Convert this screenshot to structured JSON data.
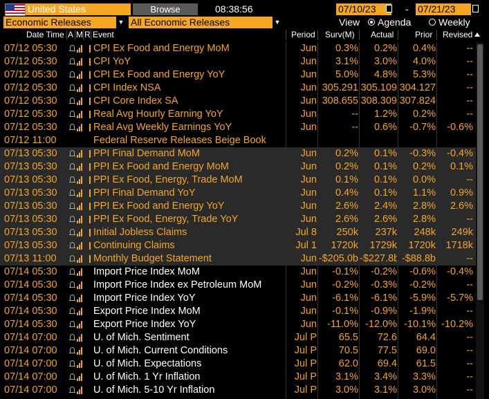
{
  "toolbar": {
    "country": "United States",
    "browse_label": "Browse",
    "clock": "08:38:56",
    "date_start": "07/10/23",
    "date_end": "07/21/23",
    "date_dash": "-"
  },
  "filters": {
    "category": "Economic Releases",
    "scope": "All Economic Releases",
    "view_label": "View",
    "option_agenda": "Agenda",
    "option_weekly": "Weekly",
    "selected_view": "Agenda"
  },
  "columns": {
    "datetime": "Date Time",
    "a": "A",
    "m": "M",
    "r": "R",
    "event": "Event",
    "period": "Period",
    "survey": "Surv(M)",
    "actual": "Actual",
    "prior": "Prior",
    "revised": "Revised"
  },
  "colors": {
    "accent_orange": "#f5a623",
    "background": "#000000",
    "shade_row": "#2a2a2a",
    "gray_button": "#5a5a5a"
  },
  "rows": [
    {
      "dt": "07/12 05:30",
      "event": "CPI Ex Food and Energy MoM",
      "period": "Jun",
      "surv": "0.3%",
      "actual": "0.2%",
      "prior": "0.4%",
      "revised": "--",
      "shade": false,
      "white": false
    },
    {
      "dt": "07/12 05:30",
      "event": "CPI YoY",
      "period": "Jun",
      "surv": "3.1%",
      "actual": "3.0%",
      "prior": "4.0%",
      "revised": "--",
      "shade": false,
      "white": false
    },
    {
      "dt": "07/12 05:30",
      "event": "CPI Ex Food and Energy YoY",
      "period": "Jun",
      "surv": "5.0%",
      "actual": "4.8%",
      "prior": "5.3%",
      "revised": "--",
      "shade": false,
      "white": false
    },
    {
      "dt": "07/12 05:30",
      "event": "CPI Index NSA",
      "period": "Jun",
      "surv": "305.291",
      "actual": "305.109",
      "prior": "304.127",
      "revised": "--",
      "shade": false,
      "white": false
    },
    {
      "dt": "07/12 05:30",
      "event": "CPI Core Index SA",
      "period": "Jun",
      "surv": "308.655",
      "actual": "308.309",
      "prior": "307.824",
      "revised": "--",
      "shade": false,
      "white": false
    },
    {
      "dt": "07/12 05:30",
      "event": "Real Avg Hourly Earning YoY",
      "period": "Jun",
      "surv": "--",
      "actual": "1.2%",
      "prior": "0.2%",
      "revised": "--",
      "shade": false,
      "white": false
    },
    {
      "dt": "07/12 05:30",
      "event": "Real Avg Weekly Earnings YoY",
      "period": "Jun",
      "surv": "--",
      "actual": "0.6%",
      "prior": "-0.7%",
      "revised": "-0.6%",
      "shade": false,
      "white": false
    },
    {
      "dt": "07/12 11:00",
      "event": "Federal Reserve Releases Beige Book",
      "period": "",
      "surv": "",
      "actual": "",
      "prior": "",
      "revised": "",
      "shade": false,
      "white": false,
      "noicons": true
    },
    {
      "dt": "07/13 05:30",
      "event": "PPI Final Demand MoM",
      "period": "Jun",
      "surv": "0.2%",
      "actual": "0.1%",
      "prior": "-0.3%",
      "revised": "-0.4%",
      "shade": true,
      "white": false
    },
    {
      "dt": "07/13 05:30",
      "event": "PPI Ex Food and Energy MoM",
      "period": "Jun",
      "surv": "0.2%",
      "actual": "0.1%",
      "prior": "0.2%",
      "revised": "0.1%",
      "shade": true,
      "white": false
    },
    {
      "dt": "07/13 05:30",
      "event": "PPI Ex Food, Energy, Trade MoM",
      "period": "Jun",
      "surv": "0.1%",
      "actual": "0.1%",
      "prior": "0.0%",
      "revised": "--",
      "shade": true,
      "white": false
    },
    {
      "dt": "07/13 05:30",
      "event": "PPI Final Demand YoY",
      "period": "Jun",
      "surv": "0.4%",
      "actual": "0.1%",
      "prior": "1.1%",
      "revised": "0.9%",
      "shade": true,
      "white": false
    },
    {
      "dt": "07/13 05:30",
      "event": "PPI Ex Food and Energy YoY",
      "period": "Jun",
      "surv": "2.6%",
      "actual": "2.4%",
      "prior": "2.8%",
      "revised": "2.6%",
      "shade": true,
      "white": false
    },
    {
      "dt": "07/13 05:30",
      "event": "PPI Ex Food, Energy, Trade YoY",
      "period": "Jun",
      "surv": "2.6%",
      "actual": "2.6%",
      "prior": "2.8%",
      "revised": "--",
      "shade": true,
      "white": false
    },
    {
      "dt": "07/13 05:30",
      "event": "Initial Jobless Claims",
      "period": "Jul 8",
      "surv": "250k",
      "actual": "237k",
      "prior": "248k",
      "revised": "249k",
      "shade": true,
      "white": false
    },
    {
      "dt": "07/13 05:30",
      "event": "Continuing Claims",
      "period": "Jul 1",
      "surv": "1720k",
      "actual": "1729k",
      "prior": "1720k",
      "revised": "1718k",
      "shade": true,
      "white": false
    },
    {
      "dt": "07/13 11:00",
      "event": "Monthly Budget Statement",
      "period": "Jun",
      "surv": "-$205.0b",
      "actual": "-$227.8b",
      "prior": "-$88.8b",
      "revised": "--",
      "shade": true,
      "white": false
    },
    {
      "dt": "07/14 05:30",
      "event": "Import Price Index MoM",
      "period": "Jun",
      "surv": "-0.1%",
      "actual": "-0.2%",
      "prior": "-0.6%",
      "revised": "-0.4%",
      "shade": false,
      "white": true
    },
    {
      "dt": "07/14 05:30",
      "event": "Import Price Index ex Petroleum MoM",
      "period": "Jun",
      "surv": "-0.2%",
      "actual": "-0.3%",
      "prior": "-0.2%",
      "revised": "--",
      "shade": false,
      "white": true
    },
    {
      "dt": "07/14 05:30",
      "event": "Import Price Index YoY",
      "period": "Jun",
      "surv": "-6.1%",
      "actual": "-6.1%",
      "prior": "-5.9%",
      "revised": "-5.7%",
      "shade": false,
      "white": true
    },
    {
      "dt": "07/14 05:30",
      "event": "Export Price Index MoM",
      "period": "Jun",
      "surv": "-0.1%",
      "actual": "-0.9%",
      "prior": "-1.9%",
      "revised": "--",
      "shade": false,
      "white": true
    },
    {
      "dt": "07/14 05:30",
      "event": "Export Price Index YoY",
      "period": "Jun",
      "surv": "-11.0%",
      "actual": "-12.0%",
      "prior": "-10.1%",
      "revised": "-10.2%",
      "shade": false,
      "white": true
    },
    {
      "dt": "07/14 07:00",
      "event": "U. of Mich. Sentiment",
      "period": "Jul P",
      "surv": "65.5",
      "actual": "72.6",
      "prior": "64.4",
      "revised": "--",
      "shade": false,
      "white": true
    },
    {
      "dt": "07/14 07:00",
      "event": "U. of Mich. Current Conditions",
      "period": "Jul P",
      "surv": "70.5",
      "actual": "77.5",
      "prior": "69.0",
      "revised": "--",
      "shade": false,
      "white": true
    },
    {
      "dt": "07/14 07:00",
      "event": "U. of Mich. Expectations",
      "period": "Jul P",
      "surv": "62.0",
      "actual": "69.4",
      "prior": "61.5",
      "revised": "--",
      "shade": false,
      "white": true
    },
    {
      "dt": "07/14 07:00",
      "event": "U. of Mich. 1 Yr Inflation",
      "period": "Jul P",
      "surv": "3.1%",
      "actual": "3.4%",
      "prior": "3.3%",
      "revised": "--",
      "shade": false,
      "white": true
    },
    {
      "dt": "07/14 07:00",
      "event": "U. of Mich. 5-10 Yr Inflation",
      "period": "Jul P",
      "surv": "3.0%",
      "actual": "3.1%",
      "prior": "3.0%",
      "revised": "--",
      "shade": false,
      "white": true
    }
  ]
}
